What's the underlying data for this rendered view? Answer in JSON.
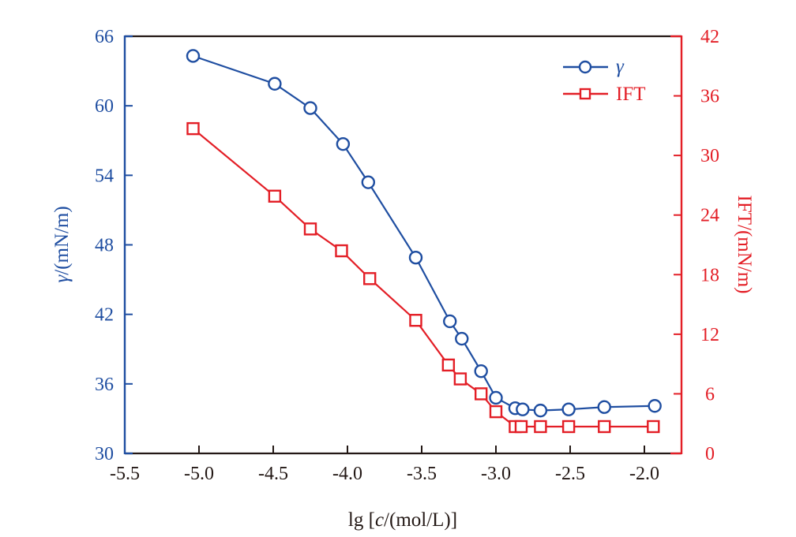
{
  "chart_data": {
    "type": "line",
    "title": "",
    "xlabel": {
      "prefix": "lg [",
      "italic": "c",
      "suffix": "/(mol/L)]"
    },
    "ylabel_left": {
      "italic": "γ",
      "suffix": "/(mN/m)"
    },
    "ylabel_right": "IFT/(mN/m)",
    "xlim": [
      -5.5,
      -1.75
    ],
    "ylim_left": [
      30,
      66
    ],
    "ylim_right": [
      0,
      42
    ],
    "xticks": [
      -5.5,
      -5.0,
      -4.5,
      -4.0,
      -3.5,
      -3.0,
      -2.5,
      -2.0
    ],
    "xtick_labels": [
      "-5.5",
      "-5.0",
      "-4.5",
      "-4.0",
      "-3.5",
      "-3.0",
      "-2.5",
      "-2.0"
    ],
    "yticks_left": [
      30,
      36,
      42,
      48,
      54,
      60,
      66
    ],
    "ytick_labels_left": [
      "30",
      "36",
      "42",
      "48",
      "54",
      "60",
      "66"
    ],
    "yticks_right": [
      0,
      6,
      12,
      18,
      24,
      30,
      36,
      42
    ],
    "ytick_labels_right": [
      "0",
      "6",
      "12",
      "18",
      "24",
      "30",
      "36",
      "42"
    ],
    "grid": false,
    "legend_position": "top-right",
    "colors": {
      "left": "#1f4ea1",
      "right": "#e31e26",
      "frame": "#231815"
    },
    "series": [
      {
        "name": "γ",
        "axis": "left",
        "marker": "circle",
        "color": "#1f4ea1",
        "x": [
          -5.04,
          -4.49,
          -4.25,
          -4.03,
          -3.86,
          -3.54,
          -3.31,
          -3.23,
          -3.1,
          -3.0,
          -2.87,
          -2.82,
          -2.7,
          -2.51,
          -2.27,
          -1.93
        ],
        "y": [
          64.3,
          61.9,
          59.8,
          56.7,
          53.4,
          46.9,
          41.4,
          39.9,
          37.1,
          34.8,
          33.9,
          33.8,
          33.7,
          33.8,
          34.0,
          34.1
        ]
      },
      {
        "name": "IFT",
        "axis": "right",
        "marker": "square",
        "color": "#e31e26",
        "x": [
          -5.04,
          -4.49,
          -4.25,
          -4.04,
          -3.85,
          -3.54,
          -3.32,
          -3.24,
          -3.1,
          -3.0,
          -2.87,
          -2.83,
          -2.7,
          -2.51,
          -2.27,
          -1.94
        ],
        "y": [
          32.7,
          25.9,
          22.6,
          20.4,
          17.6,
          13.4,
          8.9,
          7.5,
          6.0,
          4.2,
          2.7,
          2.7,
          2.7,
          2.7,
          2.7,
          2.7
        ]
      }
    ]
  }
}
